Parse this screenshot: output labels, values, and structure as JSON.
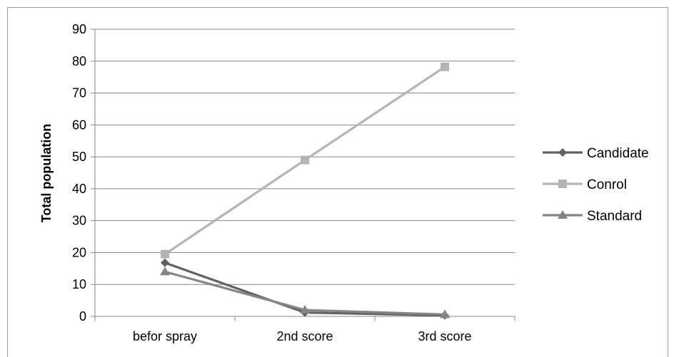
{
  "chart_data": {
    "type": "line",
    "title": "",
    "xlabel": "",
    "ylabel": "Total population",
    "categories": [
      "befor spray",
      "2nd score",
      "3rd score"
    ],
    "ylim": [
      0,
      90
    ],
    "yticks": [
      0,
      10,
      20,
      30,
      40,
      50,
      60,
      70,
      80,
      90
    ],
    "grid": true,
    "legend_position": "right",
    "series": [
      {
        "name": "Candidate",
        "values": [
          16.8,
          1.2,
          0.3
        ],
        "color": "#616161",
        "marker": "diamond"
      },
      {
        "name": "Conrol",
        "values": [
          19.5,
          49,
          78.2
        ],
        "color": "#b4b4b4",
        "marker": "square"
      },
      {
        "name": "Standard",
        "values": [
          14,
          2,
          0.6
        ],
        "color": "#858585",
        "marker": "triangle"
      }
    ]
  }
}
